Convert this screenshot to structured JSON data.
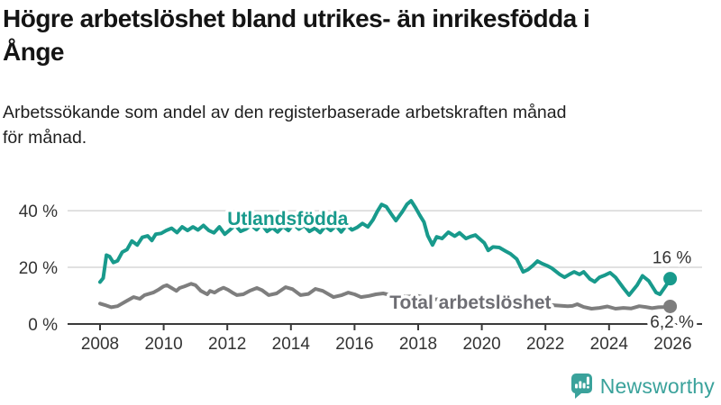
{
  "header": {
    "title_line1": "Högre arbetslöshet bland utrikes- än inrikesfödda i",
    "title_line2": "Ånge",
    "subtitle_line1": "Arbetssökande som andel av den registerbaserade arbetskraften månad",
    "subtitle_line2": "för månad."
  },
  "footer": {
    "brand": "Newsworthy"
  },
  "colors": {
    "teal": "#189a8c",
    "gray": "#7e7e7e",
    "gray_label": "#6e6e74",
    "grid": "#d7d7d7",
    "axis": "#3a3a3a",
    "text": "#333333",
    "brand_teal": "#3aa29b",
    "title_text": "#141414"
  },
  "chart_data": {
    "type": "line",
    "title": "Högre arbetslöshet bland utrikes- än inrikesfödda i Ånge",
    "subtitle": "Arbetssökande som andel av den registerbaserade arbetskraften månad för månad.",
    "unit": "%",
    "grid": true,
    "legend_position": "inline-labels",
    "xlim": [
      2007.8,
      2026.9
    ],
    "ylim": [
      0,
      45
    ],
    "yticks": [
      {
        "value": 0,
        "label": "0 %"
      },
      {
        "value": 20,
        "label": "20 %"
      },
      {
        "value": 40,
        "label": "40 %"
      }
    ],
    "xticks": [
      {
        "value": 2008,
        "label": "2008"
      },
      {
        "value": 2010,
        "label": "2010"
      },
      {
        "value": 2012,
        "label": "2012"
      },
      {
        "value": 2014,
        "label": "2014"
      },
      {
        "value": 2016,
        "label": "2016"
      },
      {
        "value": 2018,
        "label": "2018"
      },
      {
        "value": 2020,
        "label": "2020"
      },
      {
        "value": 2022,
        "label": "2022"
      },
      {
        "value": 2024,
        "label": "2024"
      },
      {
        "value": 2026,
        "label": "2026"
      }
    ],
    "series": [
      {
        "id": "utlandsfodda",
        "name": "Utlandsfödda",
        "color": "#189a8c",
        "label_color": "#189a8c",
        "label": {
          "text": "Utlandsfödda",
          "x": 2012.0,
          "y": 35.0
        },
        "end_label": {
          "text": "16 %",
          "placement": "above"
        },
        "points": [
          [
            2008.0,
            14.8
          ],
          [
            2008.1,
            16.2
          ],
          [
            2008.2,
            24.3
          ],
          [
            2008.3,
            23.8
          ],
          [
            2008.42,
            21.7
          ],
          [
            2008.55,
            22.3
          ],
          [
            2008.7,
            25.4
          ],
          [
            2008.85,
            26.3
          ],
          [
            2009.0,
            29.3
          ],
          [
            2009.17,
            27.9
          ],
          [
            2009.33,
            30.6
          ],
          [
            2009.5,
            31.1
          ],
          [
            2009.63,
            29.5
          ],
          [
            2009.75,
            31.7
          ],
          [
            2009.92,
            32.0
          ],
          [
            2010.08,
            33.0
          ],
          [
            2010.25,
            33.8
          ],
          [
            2010.42,
            32.3
          ],
          [
            2010.58,
            34.3
          ],
          [
            2010.75,
            33.0
          ],
          [
            2010.92,
            34.3
          ],
          [
            2011.08,
            33.2
          ],
          [
            2011.25,
            34.8
          ],
          [
            2011.42,
            33.0
          ],
          [
            2011.58,
            32.2
          ],
          [
            2011.75,
            34.3
          ],
          [
            2011.92,
            31.7
          ],
          [
            2012.08,
            33.2
          ],
          [
            2012.25,
            34.9
          ],
          [
            2012.42,
            32.7
          ],
          [
            2012.58,
            33.5
          ],
          [
            2012.75,
            34.9
          ],
          [
            2012.92,
            33.3
          ],
          [
            2013.08,
            35.2
          ],
          [
            2013.25,
            32.7
          ],
          [
            2013.42,
            34.0
          ],
          [
            2013.58,
            32.5
          ],
          [
            2013.75,
            34.5
          ],
          [
            2013.92,
            33.0
          ],
          [
            2014.08,
            35.3
          ],
          [
            2014.25,
            33.5
          ],
          [
            2014.42,
            34.8
          ],
          [
            2014.58,
            32.7
          ],
          [
            2014.75,
            33.8
          ],
          [
            2014.92,
            32.3
          ],
          [
            2015.08,
            34.5
          ],
          [
            2015.25,
            33.0
          ],
          [
            2015.42,
            34.7
          ],
          [
            2015.58,
            32.5
          ],
          [
            2015.75,
            34.9
          ],
          [
            2015.92,
            33.2
          ],
          [
            2016.08,
            34.1
          ],
          [
            2016.25,
            35.5
          ],
          [
            2016.42,
            34.3
          ],
          [
            2016.58,
            36.8
          ],
          [
            2016.72,
            39.8
          ],
          [
            2016.85,
            42.2
          ],
          [
            2017.0,
            41.4
          ],
          [
            2017.15,
            38.9
          ],
          [
            2017.3,
            36.5
          ],
          [
            2017.5,
            39.6
          ],
          [
            2017.65,
            42.3
          ],
          [
            2017.78,
            43.5
          ],
          [
            2017.92,
            41.0
          ],
          [
            2018.05,
            38.4
          ],
          [
            2018.18,
            36.0
          ],
          [
            2018.3,
            31.2
          ],
          [
            2018.45,
            27.9
          ],
          [
            2018.58,
            30.8
          ],
          [
            2018.75,
            30.2
          ],
          [
            2018.95,
            32.4
          ],
          [
            2019.15,
            31.0
          ],
          [
            2019.3,
            32.2
          ],
          [
            2019.5,
            30.2
          ],
          [
            2019.65,
            30.9
          ],
          [
            2019.8,
            31.4
          ],
          [
            2019.92,
            30.2
          ],
          [
            2020.08,
            28.6
          ],
          [
            2020.2,
            26.0
          ],
          [
            2020.35,
            27.2
          ],
          [
            2020.55,
            27.0
          ],
          [
            2020.75,
            25.7
          ],
          [
            2020.9,
            24.8
          ],
          [
            2021.1,
            22.9
          ],
          [
            2021.3,
            18.4
          ],
          [
            2021.45,
            19.2
          ],
          [
            2021.6,
            20.6
          ],
          [
            2021.75,
            22.2
          ],
          [
            2021.9,
            21.3
          ],
          [
            2022.05,
            20.6
          ],
          [
            2022.2,
            19.7
          ],
          [
            2022.45,
            17.5
          ],
          [
            2022.6,
            16.5
          ],
          [
            2022.75,
            17.5
          ],
          [
            2022.9,
            18.4
          ],
          [
            2023.07,
            17.5
          ],
          [
            2023.2,
            18.4
          ],
          [
            2023.4,
            15.9
          ],
          [
            2023.55,
            14.9
          ],
          [
            2023.7,
            16.5
          ],
          [
            2023.88,
            17.3
          ],
          [
            2024.03,
            18.1
          ],
          [
            2024.2,
            16.5
          ],
          [
            2024.45,
            12.7
          ],
          [
            2024.63,
            10.2
          ],
          [
            2024.88,
            13.7
          ],
          [
            2025.05,
            17.0
          ],
          [
            2025.25,
            15.2
          ],
          [
            2025.48,
            11.1
          ],
          [
            2025.6,
            10.5
          ],
          [
            2025.8,
            13.7
          ],
          [
            2025.92,
            16.0
          ]
        ]
      },
      {
        "id": "total",
        "name": "Total arbetslöshet",
        "color": "#7e7e7e",
        "label_color": "#6e6e74",
        "label": {
          "text": "Total arbetslöshet",
          "x": 2017.1,
          "y": 5.4
        },
        "end_label": {
          "text": "6,2 %",
          "placement": "axis"
        },
        "points": [
          [
            2008.0,
            7.2
          ],
          [
            2008.15,
            6.7
          ],
          [
            2008.35,
            5.9
          ],
          [
            2008.55,
            6.3
          ],
          [
            2008.8,
            7.9
          ],
          [
            2009.05,
            9.5
          ],
          [
            2009.25,
            8.9
          ],
          [
            2009.4,
            10.2
          ],
          [
            2009.67,
            11.1
          ],
          [
            2009.85,
            12.2
          ],
          [
            2010.0,
            13.3
          ],
          [
            2010.1,
            13.7
          ],
          [
            2010.25,
            12.7
          ],
          [
            2010.4,
            11.7
          ],
          [
            2010.5,
            12.7
          ],
          [
            2010.66,
            13.3
          ],
          [
            2010.86,
            14.2
          ],
          [
            2011.0,
            13.7
          ],
          [
            2011.17,
            11.7
          ],
          [
            2011.37,
            10.5
          ],
          [
            2011.46,
            11.7
          ],
          [
            2011.6,
            11.1
          ],
          [
            2011.74,
            12.1
          ],
          [
            2011.88,
            12.8
          ],
          [
            2012.02,
            12.1
          ],
          [
            2012.16,
            11.1
          ],
          [
            2012.3,
            10.2
          ],
          [
            2012.5,
            10.5
          ],
          [
            2012.7,
            11.7
          ],
          [
            2012.93,
            12.7
          ],
          [
            2013.1,
            11.9
          ],
          [
            2013.3,
            10.2
          ],
          [
            2013.55,
            10.8
          ],
          [
            2013.83,
            13.0
          ],
          [
            2014.05,
            12.3
          ],
          [
            2014.3,
            10.2
          ],
          [
            2014.55,
            10.6
          ],
          [
            2014.77,
            12.4
          ],
          [
            2015.0,
            11.7
          ],
          [
            2015.34,
            9.5
          ],
          [
            2015.6,
            10.2
          ],
          [
            2015.8,
            11.1
          ],
          [
            2016.0,
            10.5
          ],
          [
            2016.2,
            9.5
          ],
          [
            2016.45,
            9.9
          ],
          [
            2016.67,
            10.5
          ],
          [
            2016.9,
            10.8
          ],
          [
            2017.1,
            10.3
          ],
          [
            2017.25,
            10.5
          ],
          [
            2017.6,
            9.6
          ],
          [
            2018.0,
            9.9
          ],
          [
            2018.4,
            8.6
          ],
          [
            2018.9,
            8.9
          ],
          [
            2019.4,
            8.0
          ],
          [
            2019.9,
            8.5
          ],
          [
            2020.4,
            8.8
          ],
          [
            2020.9,
            8.0
          ],
          [
            2021.4,
            7.2
          ],
          [
            2021.9,
            7.0
          ],
          [
            2022.3,
            6.6
          ],
          [
            2022.7,
            6.3
          ],
          [
            2022.85,
            6.4
          ],
          [
            2023.0,
            7.0
          ],
          [
            2023.2,
            6.0
          ],
          [
            2023.45,
            5.4
          ],
          [
            2023.7,
            5.7
          ],
          [
            2023.95,
            6.2
          ],
          [
            2024.2,
            5.4
          ],
          [
            2024.45,
            5.7
          ],
          [
            2024.7,
            5.5
          ],
          [
            2024.95,
            6.3
          ],
          [
            2025.15,
            6.0
          ],
          [
            2025.35,
            5.6
          ],
          [
            2025.55,
            5.9
          ],
          [
            2025.75,
            6.0
          ],
          [
            2025.92,
            6.2
          ]
        ]
      }
    ]
  }
}
